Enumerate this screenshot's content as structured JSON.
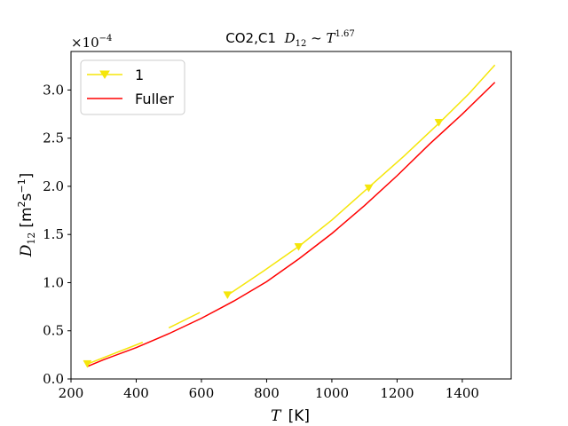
{
  "chart_data": {
    "type": "line",
    "title": "CO2,C1 D₁₂ ~ T^1.67",
    "title_parts": {
      "main": "CO2,C1",
      "formula": "D",
      "formula_sub": "12",
      "relation": " ~ T",
      "exponent": "1.67"
    },
    "xlabel": "T [K]",
    "xlabel_parts": {
      "var": "T",
      "unit": "[K]"
    },
    "ylabel": "D12 [m²s⁻¹]",
    "ylabel_parts": {
      "var": "D",
      "sub": "12",
      "unit": "[m",
      "unit_sup": "2",
      "unit_mid": "s",
      "unit_sup2": "−1",
      "unit_end": "]"
    },
    "offset_text": "×10⁻⁴",
    "offset_parts": {
      "base": "×10",
      "exp": "−4"
    },
    "xlim": [
      200,
      1550
    ],
    "ylim": [
      0.0,
      3.4
    ],
    "x_ticks": [
      200,
      400,
      600,
      800,
      1000,
      1200,
      1400
    ],
    "x_tick_labels": [
      "200",
      "400",
      "600",
      "800",
      "1000",
      "1200",
      "1400"
    ],
    "y_ticks": [
      0.0,
      0.5,
      1.0,
      1.5,
      2.0,
      2.5,
      3.0
    ],
    "y_tick_labels": [
      "0.0",
      "0.5",
      "1.0",
      "1.5",
      "2.0",
      "2.5",
      "3.0"
    ],
    "grid": false,
    "legend_position": "top-left",
    "series": [
      {
        "name": "1",
        "color": "#f5e60a",
        "marker": "triangle-down",
        "segments": [
          {
            "x": [
              250,
              420
            ],
            "y": [
              0.155,
              0.38
            ]
          },
          {
            "x": [
              500,
              595
            ],
            "y": [
              0.53,
              0.69
            ]
          },
          {
            "x": [
              680,
              790,
              900,
              1000,
              1110,
              1220,
              1330,
              1420,
              1500
            ],
            "y": [
              0.87,
              1.12,
              1.38,
              1.65,
              1.98,
              2.31,
              2.66,
              2.96,
              3.26
            ]
          }
        ],
        "marker_x": [
          250,
          680,
          898,
          1113,
          1328
        ],
        "marker_y": [
          0.155,
          0.87,
          1.37,
          1.98,
          2.66
        ]
      },
      {
        "name": "Fuller",
        "color": "#ff0000",
        "marker": "none",
        "x": [
          250,
          300,
          400,
          500,
          600,
          700,
          800,
          900,
          1000,
          1100,
          1200,
          1300,
          1400,
          1500
        ],
        "y": [
          0.13,
          0.2,
          0.325,
          0.47,
          0.63,
          0.81,
          1.01,
          1.25,
          1.51,
          1.8,
          2.11,
          2.44,
          2.75,
          3.08
        ]
      }
    ]
  }
}
